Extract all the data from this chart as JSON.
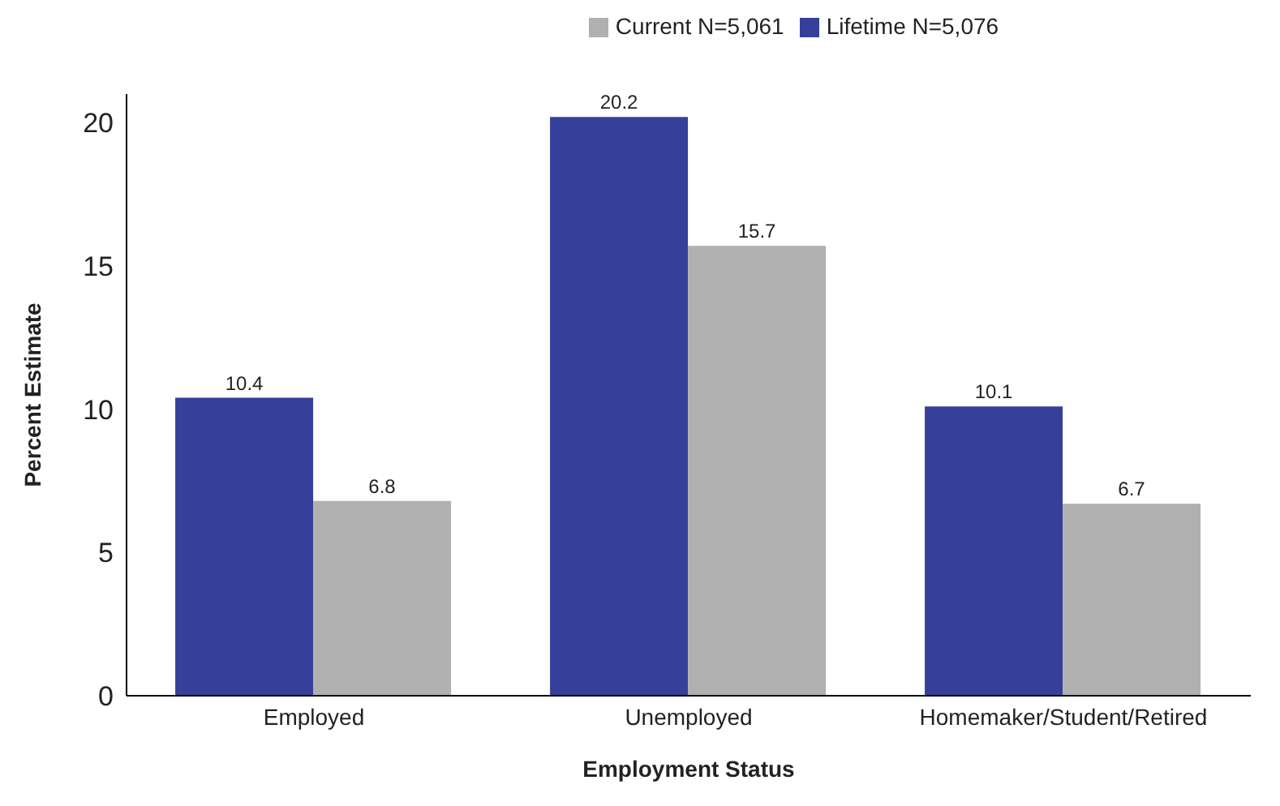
{
  "chart_data": {
    "type": "bar",
    "xlabel": "Employment Status",
    "ylabel": "Percent Estimate",
    "categories": [
      "Employed",
      "Unemployed",
      "Homemaker/Student/Retired"
    ],
    "series": [
      {
        "name": "Lifetime N=5,076",
        "color": "#363f9a",
        "values": [
          10.4,
          20.2,
          10.1
        ]
      },
      {
        "name": "Current N=5,061",
        "color": "#b0b0b0",
        "values": [
          6.8,
          15.7,
          6.7
        ]
      }
    ],
    "ylim": [
      0,
      21
    ],
    "yticks": [
      0,
      5,
      10,
      15,
      20
    ],
    "grid": false,
    "legend": "top",
    "data_labels": true
  }
}
